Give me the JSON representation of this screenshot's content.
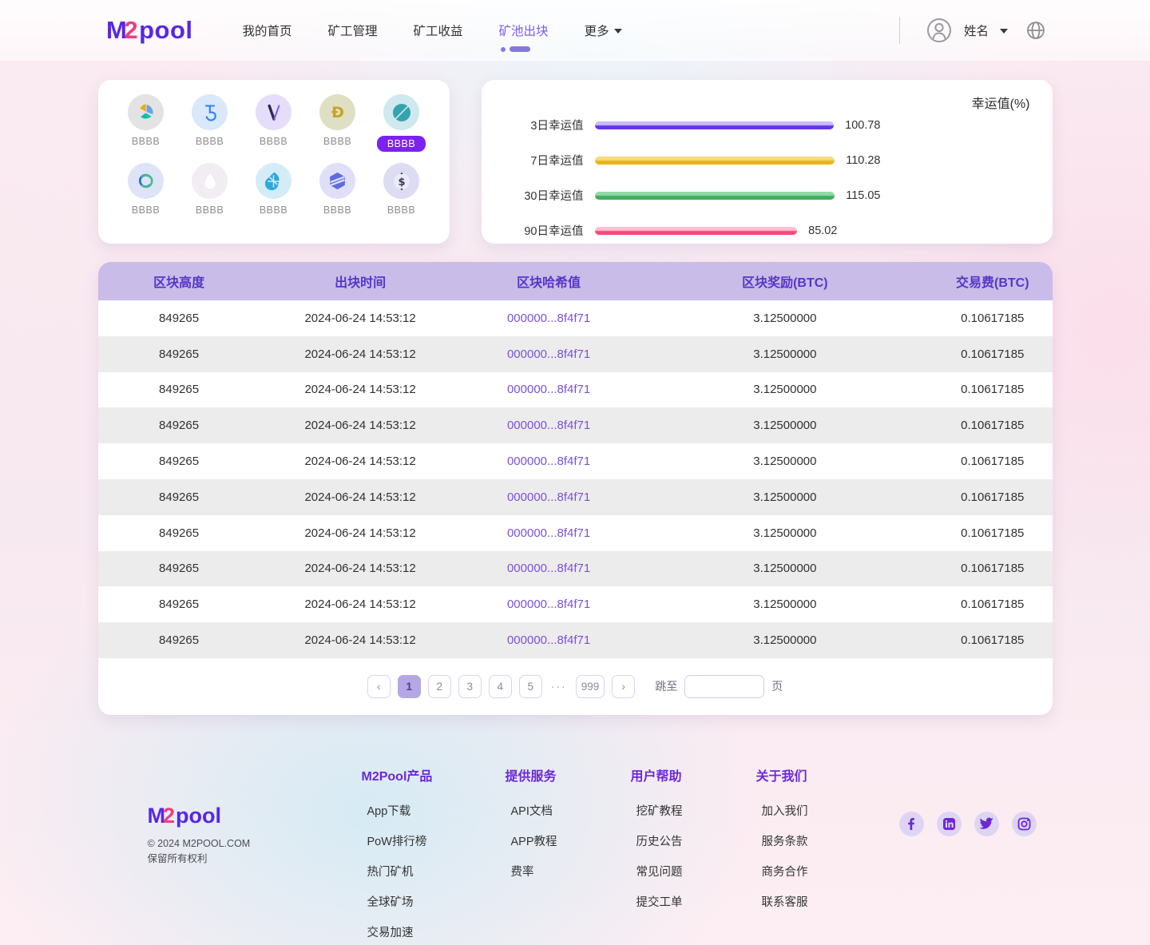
{
  "header": {
    "logo": {
      "part1": "M",
      "part2": "2",
      "part3": "pool"
    },
    "nav": [
      {
        "label": "我的首页",
        "active": false,
        "dropdown": false
      },
      {
        "label": "矿工管理",
        "active": false,
        "dropdown": false
      },
      {
        "label": "矿工收益",
        "active": false,
        "dropdown": false
      },
      {
        "label": "矿池出块",
        "active": true,
        "dropdown": false
      },
      {
        "label": "更多",
        "active": false,
        "dropdown": true
      }
    ],
    "user_name": "姓名"
  },
  "coin_panel": {
    "coins": [
      {
        "icon": "nem-icon",
        "label": "BBBB",
        "selected": false
      },
      {
        "icon": "tezos-icon",
        "label": "BBBB",
        "selected": false
      },
      {
        "icon": "vechain-icon",
        "label": "BBBB",
        "selected": false
      },
      {
        "icon": "dogecoin-icon",
        "label": "BBBB",
        "selected": false
      },
      {
        "icon": "ontology-icon",
        "label": "BBBB",
        "selected": true
      },
      {
        "icon": "decred-icon",
        "label": "BBBB",
        "selected": false
      },
      {
        "icon": "drop-coin-icon",
        "label": "BBBB",
        "selected": false
      },
      {
        "icon": "bitshares-icon",
        "label": "BBBB",
        "selected": false
      },
      {
        "icon": "stratis-icon",
        "label": "BBBB",
        "selected": false
      },
      {
        "icon": "dollar-coin-icon",
        "label": "BBBB",
        "selected": false
      }
    ]
  },
  "chart_data": {
    "type": "bar",
    "orientation": "horizontal",
    "title": "幸运值(%)",
    "categories": [
      "3日幸运值",
      "7日幸运值",
      "30日幸运值",
      "90日幸运值"
    ],
    "values": [
      100.78,
      110.28,
      115.05,
      85.02
    ],
    "value_labels": [
      "100.78",
      "110.28",
      "115.05",
      "85.02"
    ],
    "bar_colors": [
      "#6633ee",
      "#e8b519",
      "#3fae5c",
      "#f5497c"
    ],
    "bar_colors_light": [
      "#cabdf4",
      "#f7d97c",
      "#93d8a9",
      "#fbc0d2"
    ],
    "xlim": [
      0,
      120
    ],
    "grid": false,
    "legend": false
  },
  "table": {
    "headers": [
      "区块高度",
      "出块时间",
      "区块哈希值",
      "区块奖励(BTC)",
      "交易费(BTC)"
    ],
    "rows": [
      [
        "849265",
        "2024-06-24 14:53:12",
        "000000...8f4f71",
        "3.12500000",
        "0.10617185"
      ],
      [
        "849265",
        "2024-06-24 14:53:12",
        "000000...8f4f71",
        "3.12500000",
        "0.10617185"
      ],
      [
        "849265",
        "2024-06-24 14:53:12",
        "000000...8f4f71",
        "3.12500000",
        "0.10617185"
      ],
      [
        "849265",
        "2024-06-24 14:53:12",
        "000000...8f4f71",
        "3.12500000",
        "0.10617185"
      ],
      [
        "849265",
        "2024-06-24 14:53:12",
        "000000...8f4f71",
        "3.12500000",
        "0.10617185"
      ],
      [
        "849265",
        "2024-06-24 14:53:12",
        "000000...8f4f71",
        "3.12500000",
        "0.10617185"
      ],
      [
        "849265",
        "2024-06-24 14:53:12",
        "000000...8f4f71",
        "3.12500000",
        "0.10617185"
      ],
      [
        "849265",
        "2024-06-24 14:53:12",
        "000000...8f4f71",
        "3.12500000",
        "0.10617185"
      ],
      [
        "849265",
        "2024-06-24 14:53:12",
        "000000...8f4f71",
        "3.12500000",
        "0.10617185"
      ],
      [
        "849265",
        "2024-06-24 14:53:12",
        "000000...8f4f71",
        "3.12500000",
        "0.10617185"
      ]
    ]
  },
  "pagination": {
    "prev": "‹",
    "pages": [
      "1",
      "2",
      "3",
      "4",
      "5"
    ],
    "active_page": "1",
    "ellipsis": "···",
    "last_page": "999",
    "next": "›",
    "jump_label": "跳至",
    "jump_value": "",
    "page_unit": "页"
  },
  "footer": {
    "copyright_line1": "© 2024 M2POOL.COM",
    "copyright_line2": "保留所有权利",
    "columns": [
      {
        "title": "M2Pool产品",
        "links": [
          "App下载",
          "PoW排行榜",
          "热门矿机",
          "全球矿场",
          "交易加速"
        ]
      },
      {
        "title": "提供服务",
        "links": [
          "API文档",
          "APP教程",
          "费率"
        ]
      },
      {
        "title": "用户帮助",
        "links": [
          "挖矿教程",
          "历史公告",
          "常见问题",
          "提交工单"
        ]
      },
      {
        "title": "关于我们",
        "links": [
          "加入我们",
          "服务条款",
          "商务合作",
          "联系客服"
        ]
      }
    ],
    "socials": [
      "facebook",
      "linkedin",
      "twitter",
      "instagram"
    ]
  },
  "colors": {
    "accent_purple": "#6c2bd9",
    "logo_purple": "#5627e8",
    "logo_pink": "#ee3e80",
    "nav_active": "#7a5af5",
    "selected_badge_bg": "#7b22f0",
    "table_header_bg": "#c9bce9",
    "table_header_text": "#5636c7",
    "row_alt_bg": "#ececec",
    "hash_link": "#7a52d9",
    "pagination_active_bg": "#b5a6e4"
  }
}
